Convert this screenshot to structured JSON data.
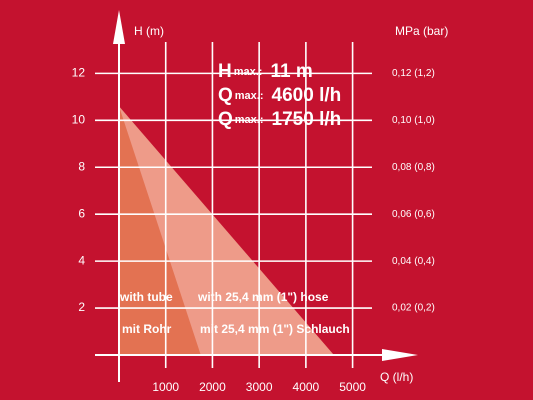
{
  "chart_data": {
    "type": "area",
    "y_label": "H (m)",
    "y2_label": "MPa (bar)",
    "x_label": "Q (l/h)",
    "background": "#c4122f",
    "grid": true,
    "xlim": [
      0,
      6400
    ],
    "ylim": [
      0,
      14.7
    ],
    "y2lim": [
      0,
      0.147
    ],
    "xticks": [
      1000,
      2000,
      3000,
      4000,
      5000
    ],
    "yticks": [
      2,
      4,
      6,
      8,
      10,
      12
    ],
    "y2ticks": [
      {
        "value": 0.02,
        "label": "0,02 (0,2)"
      },
      {
        "value": 0.04,
        "label": "0,04 (0,4)"
      },
      {
        "value": 0.06,
        "label": "0,06 (0,6)"
      },
      {
        "value": 0.08,
        "label": "0,08 (0,8)"
      },
      {
        "value": 0.1,
        "label": "0,10 (1,0)"
      },
      {
        "value": 0.12,
        "label": "0,12 (1,2)"
      }
    ],
    "specs": [
      {
        "symbol": "H",
        "sub": "max.:",
        "value": "11 m"
      },
      {
        "symbol": "Q",
        "sub": "max.:",
        "value": "4600 l/h"
      },
      {
        "symbol": "Q",
        "sub": "max.:",
        "value": "1750 l/h"
      }
    ],
    "series": [
      {
        "name": "with 25,4 mm (1\") hose",
        "label_de": "mit 25,4 mm (1\") Schlauch",
        "color": "#f3ab93",
        "x": [
          0,
          4600
        ],
        "values": [
          10.6,
          0
        ]
      },
      {
        "name": "with tube",
        "label_de": "mit Rohr",
        "color": "#e2704f",
        "x": [
          0,
          1750
        ],
        "values": [
          10.6,
          0
        ]
      }
    ]
  }
}
